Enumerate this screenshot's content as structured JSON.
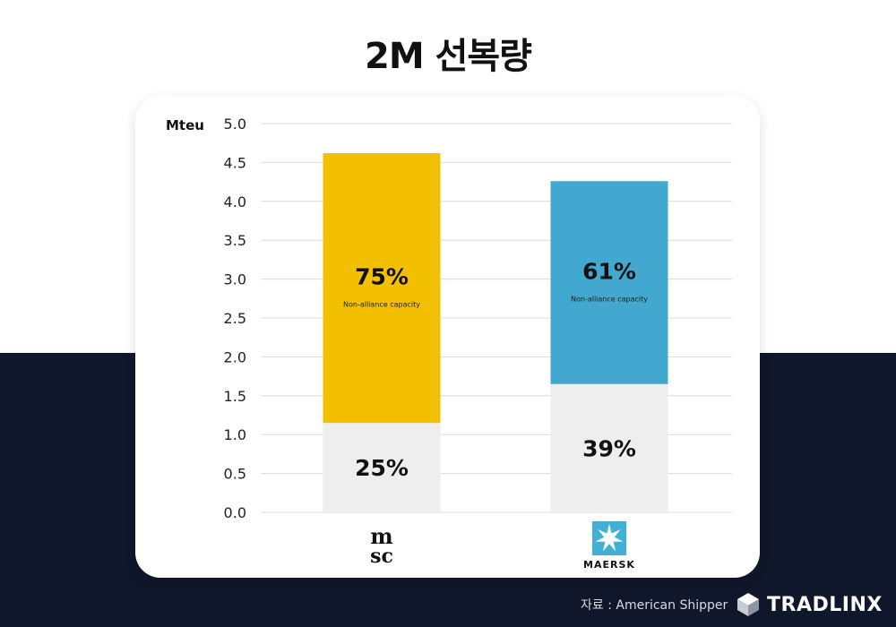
{
  "title": "2M 선복량",
  "source": "자료 : American Shipper",
  "brand": {
    "name": "TRADLINX",
    "logo_icon": "tradlinx-cube-icon"
  },
  "colors": {
    "msc_top": "#f2c000",
    "maersk_top": "#42a8cf",
    "bottom": "#eeeeee",
    "grid": "#dcdcdc",
    "dark_bg": "#11172b",
    "maersk_logo_bg": "#42b0d5"
  },
  "chart_data": {
    "type": "bar",
    "stacked": true,
    "ylabel": "Mteu",
    "ylim": [
      0,
      5.0
    ],
    "yticks": [
      "0.0",
      "0.5",
      "1.0",
      "1.5",
      "2.0",
      "2.5",
      "3.0",
      "3.5",
      "4.0",
      "4.5",
      "5.0"
    ],
    "grid": true,
    "categories": [
      "MSC",
      "MAERSK"
    ],
    "category_logos": [
      {
        "icon": "msc-logo-icon",
        "lines": [
          "m",
          "sc"
        ]
      },
      {
        "icon": "maersk-logo-icon",
        "label": "MAERSK"
      }
    ],
    "series": [
      {
        "values": [
          1.15,
          1.65
        ],
        "labels": [
          "25%",
          "39%"
        ],
        "sublabels": [
          "",
          ""
        ]
      },
      {
        "values": [
          3.47,
          2.61
        ],
        "labels": [
          "75%",
          "61%"
        ],
        "sublabels": [
          "Non-alliance capacity",
          "Non-alliance capacity"
        ]
      }
    ],
    "totals": [
      4.62,
      4.26
    ]
  }
}
